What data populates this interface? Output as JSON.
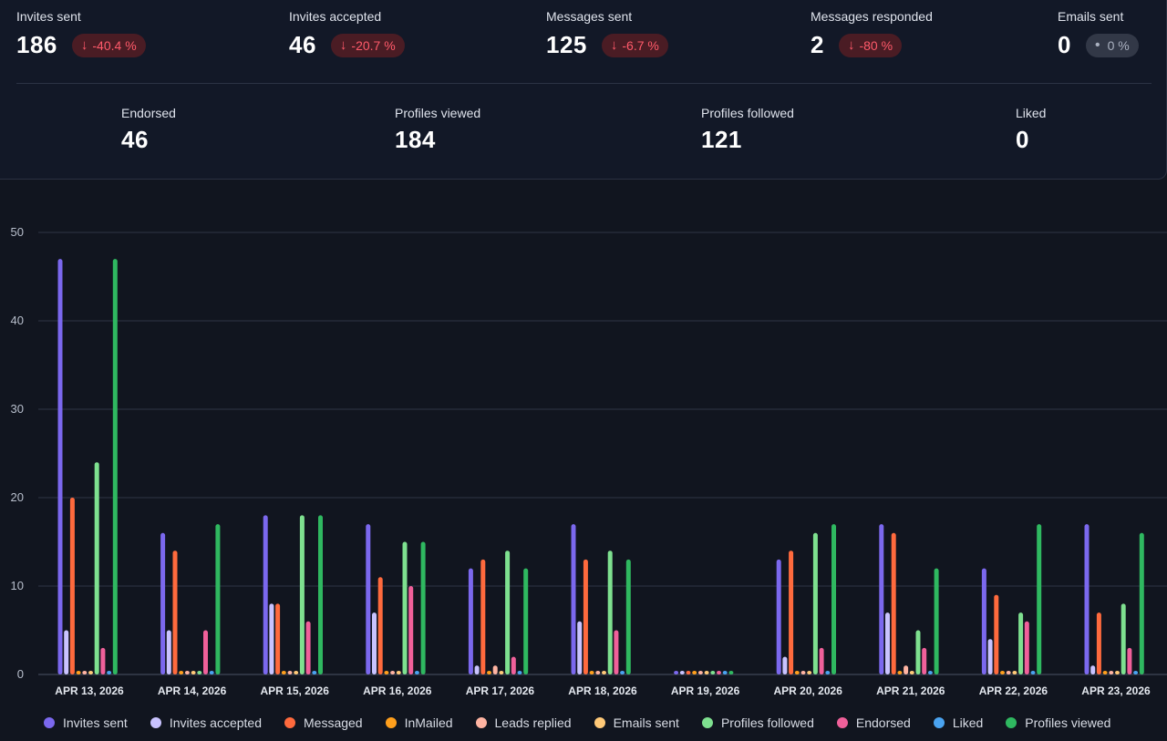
{
  "stats_top": [
    {
      "label": "Invites sent",
      "value": "186",
      "change": "-40.4 %",
      "trend": "down"
    },
    {
      "label": "Invites accepted",
      "value": "46",
      "change": "-20.7 %",
      "trend": "down"
    },
    {
      "label": "Messages sent",
      "value": "125",
      "change": "-6.7 %",
      "trend": "down"
    },
    {
      "label": "Messages responded",
      "value": "2",
      "change": "-80 %",
      "trend": "down"
    },
    {
      "label": "Emails sent",
      "value": "0",
      "change": "0 %",
      "trend": "flat"
    }
  ],
  "stats_bottom": [
    {
      "label": "Endorsed",
      "value": "46"
    },
    {
      "label": "Profiles viewed",
      "value": "184"
    },
    {
      "label": "Profiles followed",
      "value": "121"
    },
    {
      "label": "Liked",
      "value": "0"
    }
  ],
  "chart_data": {
    "type": "bar",
    "categories": [
      "APR 13, 2026",
      "APR 14, 2026",
      "APR 15, 2026",
      "APR 16, 2026",
      "APR 17, 2026",
      "APR 18, 2026",
      "APR 19, 2026",
      "APR 20, 2026",
      "APR 21, 2026",
      "APR 22, 2026",
      "APR 23, 2026"
    ],
    "ylim": [
      0,
      50
    ],
    "yticks": [
      "0",
      "10",
      "20",
      "30",
      "40",
      "50"
    ],
    "grid": true,
    "legend_position": "bottom",
    "series": [
      {
        "name": "Invites sent",
        "color": "#7b68ee",
        "values": [
          47,
          16,
          18,
          17,
          12,
          17,
          0,
          13,
          17,
          12,
          17
        ]
      },
      {
        "name": "Invites accepted",
        "color": "#c9c3ff",
        "values": [
          5,
          5,
          8,
          7,
          1,
          6,
          0,
          2,
          7,
          4,
          1
        ]
      },
      {
        "name": "Messaged",
        "color": "#ff6a3d",
        "values": [
          20,
          14,
          8,
          11,
          13,
          13,
          0,
          14,
          16,
          9,
          7
        ]
      },
      {
        "name": "InMailed",
        "color": "#ff9f1c",
        "values": [
          0,
          0,
          0,
          0,
          0,
          0,
          0,
          0,
          0,
          0,
          0
        ]
      },
      {
        "name": "Leads replied",
        "color": "#ffb4a2",
        "values": [
          0,
          0,
          0,
          0,
          1,
          0,
          0,
          0,
          1,
          0,
          0
        ]
      },
      {
        "name": "Emails sent",
        "color": "#ffc978",
        "values": [
          0,
          0,
          0,
          0,
          0,
          0,
          0,
          0,
          0,
          0,
          0
        ]
      },
      {
        "name": "Profiles followed",
        "color": "#7ee08f",
        "values": [
          24,
          0,
          18,
          15,
          14,
          14,
          0,
          16,
          5,
          7,
          8
        ]
      },
      {
        "name": "Endorsed",
        "color": "#f0609a",
        "values": [
          3,
          5,
          6,
          10,
          2,
          5,
          0,
          3,
          3,
          6,
          3
        ]
      },
      {
        "name": "Liked",
        "color": "#4aa3f0",
        "values": [
          0,
          0,
          0,
          0,
          0,
          0,
          0,
          0,
          0,
          0,
          0
        ]
      },
      {
        "name": "Profiles viewed",
        "color": "#2fb860",
        "values": [
          47,
          17,
          18,
          15,
          12,
          13,
          0,
          17,
          12,
          17,
          16
        ]
      }
    ]
  }
}
